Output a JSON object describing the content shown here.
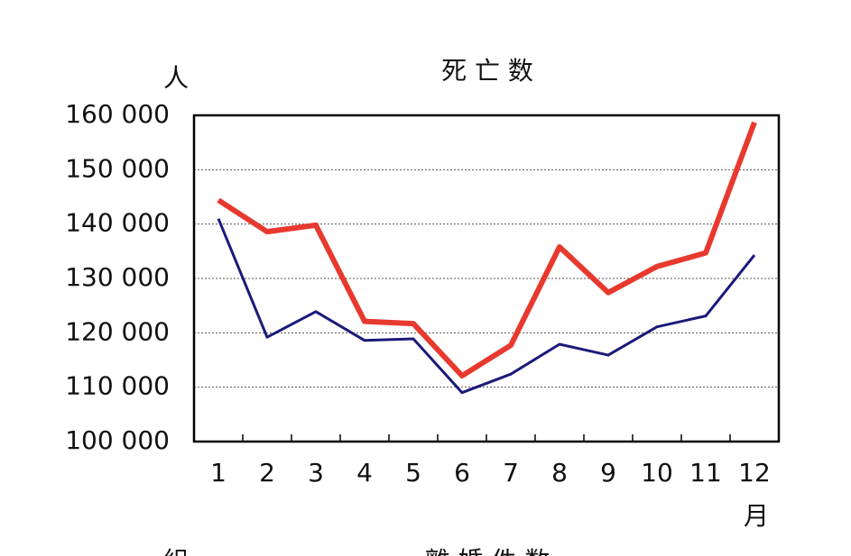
{
  "chart_data": {
    "type": "line",
    "title": "死 亡 数",
    "y_unit": "人",
    "x_unit": "月",
    "categories": [
      "1",
      "2",
      "3",
      "4",
      "5",
      "6",
      "7",
      "8",
      "9",
      "10",
      "11",
      "12"
    ],
    "series": [
      {
        "color": "#e8392f",
        "values": [
          144400,
          138600,
          139800,
          122100,
          121700,
          112100,
          117700,
          135800,
          127400,
          132200,
          134700,
          158700
        ]
      },
      {
        "color": "#1a1a7a",
        "values": [
          141000,
          119200,
          123900,
          118600,
          118900,
          109000,
          112400,
          117900,
          115900,
          121100,
          123100,
          134300
        ]
      }
    ],
    "ylim": [
      100000,
      160000
    ],
    "yticks": [
      {
        "value": 100000,
        "label": "100 000"
      },
      {
        "value": 110000,
        "label": "110 000"
      },
      {
        "value": 120000,
        "label": "120 000"
      },
      {
        "value": 130000,
        "label": "130 000"
      },
      {
        "value": 140000,
        "label": "140 000"
      },
      {
        "value": 150000,
        "label": "150 000"
      },
      {
        "value": 160000,
        "label": "160 000"
      }
    ],
    "grid": true
  },
  "next_chart": {
    "unit": "組",
    "title": "離 婚 件 数"
  }
}
